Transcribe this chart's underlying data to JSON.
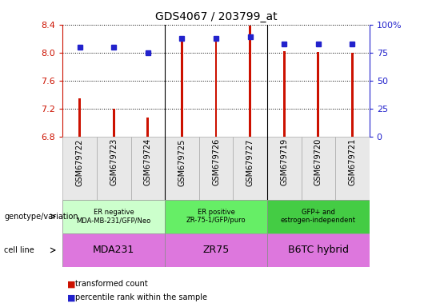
{
  "title": "GDS4067 / 203799_at",
  "samples": [
    "GSM679722",
    "GSM679723",
    "GSM679724",
    "GSM679725",
    "GSM679726",
    "GSM679727",
    "GSM679719",
    "GSM679720",
    "GSM679721"
  ],
  "transformed_count": [
    7.35,
    7.2,
    7.07,
    8.22,
    8.21,
    8.38,
    8.02,
    8.01,
    8.0
  ],
  "percentile_rank": [
    80,
    80,
    75,
    88,
    88,
    89,
    83,
    83,
    83
  ],
  "ylim_left": [
    6.8,
    8.4
  ],
  "ylim_right": [
    0,
    100
  ],
  "yticks_left": [
    6.8,
    7.2,
    7.6,
    8.0,
    8.4
  ],
  "yticks_right": [
    0,
    25,
    50,
    75,
    100
  ],
  "geno_colors": [
    "#ccffcc",
    "#66ee66",
    "#44cc44"
  ],
  "geno_labels": [
    "ER negative\nMDA-MB-231/GFP/Neo",
    "ER positive\nZR-75-1/GFP/puro",
    "GFP+ and\nestrogen-independent"
  ],
  "cell_colors": [
    "#ee88ee",
    "#dd66dd",
    "#cc88cc"
  ],
  "cell_labels": [
    "MDA231",
    "ZR75",
    "B6TC hybrid"
  ],
  "group_ranges": [
    [
      0,
      3
    ],
    [
      3,
      6
    ],
    [
      6,
      9
    ]
  ],
  "bar_color": "#cc1100",
  "dot_color": "#2222cc",
  "genotype_label": "genotype/variation",
  "cell_line_label": "cell line",
  "legend_bar": "transformed count",
  "legend_dot": "percentile rank within the sample",
  "left_axis_color": "#cc1100",
  "right_axis_color": "#2222cc",
  "bar_width": 0.07
}
